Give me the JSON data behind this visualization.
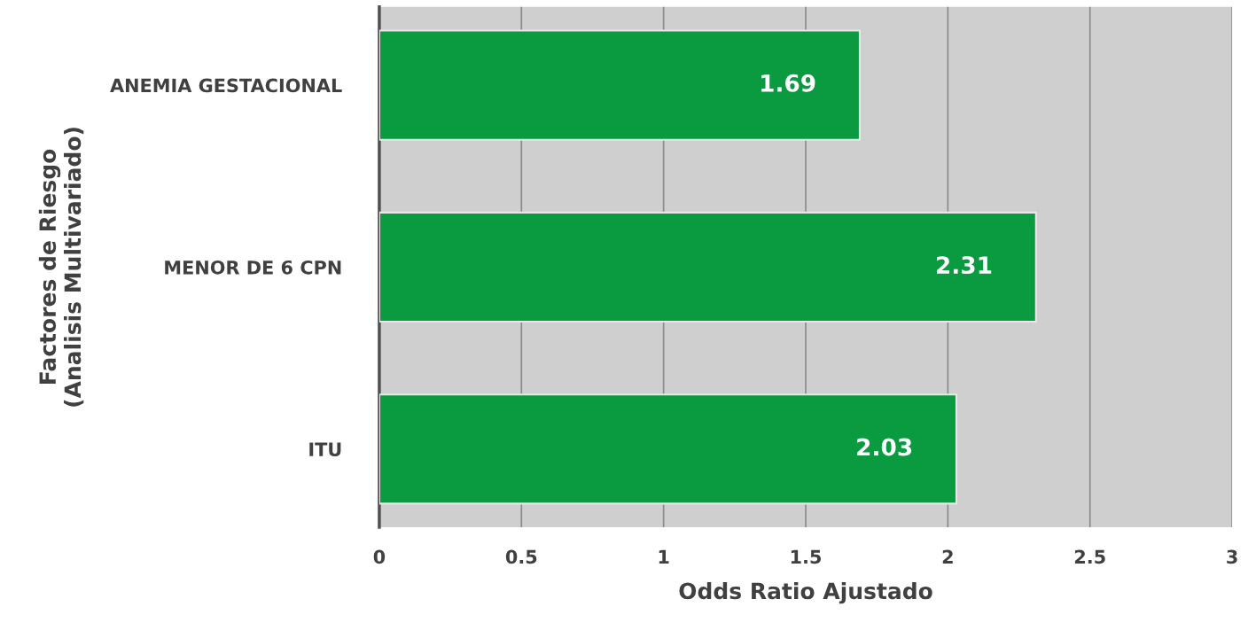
{
  "chart_data": {
    "type": "bar",
    "orientation": "horizontal",
    "xlabel": "Odds Ratio Ajustado",
    "ylabel": "Factores de Riesgo\n(Analisis Multivariado)",
    "categories": [
      "ANEMIA GESTACIONAL",
      "MENOR DE 6 CPN",
      "ITU"
    ],
    "values": [
      1.69,
      2.31,
      2.03
    ],
    "color": "#0a9a40",
    "xlim": [
      0,
      3
    ],
    "xticks": [
      0,
      0.5,
      1,
      1.5,
      2,
      2.5,
      3
    ],
    "grid": "x",
    "data_labels": true
  }
}
